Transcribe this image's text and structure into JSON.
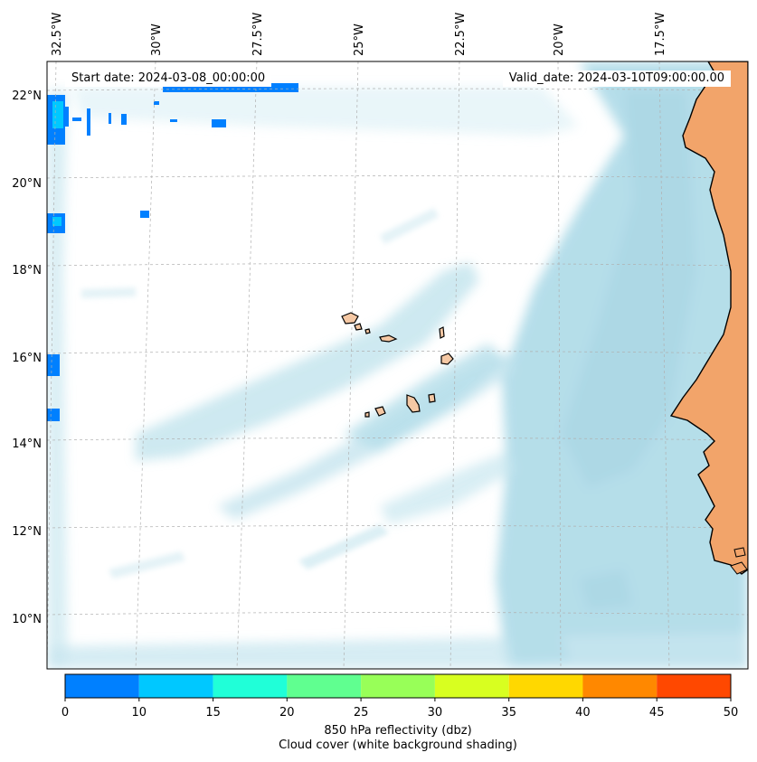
{
  "map": {
    "start_label": "Start date: 2024-03-08_00:00:00",
    "valid_label": "Valid_date: 2024-03-10T09:00:00.00",
    "lon_ticks": [
      "32.5°W",
      "30°W",
      "27.5°W",
      "25°W",
      "22.5°W",
      "20°W",
      "17.5°W"
    ],
    "lat_ticks": [
      "22°N",
      "20°N",
      "18°N",
      "16°N",
      "14°N",
      "12°N",
      "10°N"
    ],
    "colors": {
      "cloud": "#a8d8e6",
      "land": "#f2a46a",
      "coast": "#000000",
      "grid": "#b0b0b0"
    }
  },
  "colorbar": {
    "bounds": [
      "0",
      "10",
      "15",
      "20",
      "25",
      "30",
      "35",
      "40",
      "45",
      "50"
    ],
    "colors": [
      "#0080ff",
      "#00c8ff",
      "#20ffd8",
      "#60ff90",
      "#98ff58",
      "#d8ff20",
      "#ffd800",
      "#ff8800",
      "#ff4800"
    ],
    "label_line1": "850 hPa reflectivity (dbz)",
    "label_line2": "Cloud cover (white background shading)"
  }
}
